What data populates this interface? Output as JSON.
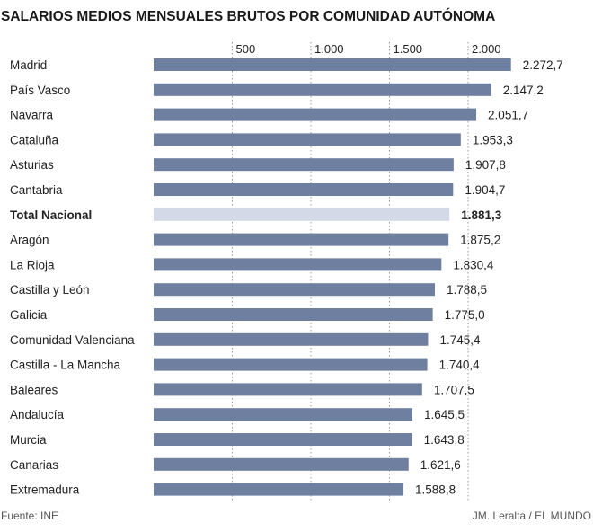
{
  "chart_data": {
    "type": "bar",
    "orientation": "horizontal",
    "title": "SALARIOS MEDIOS MENSUALES BRUTOS POR COMUNIDAD AUTÓNOMA",
    "xlim": [
      0,
      2300
    ],
    "x_ticks": [
      {
        "value": 500,
        "label": "500"
      },
      {
        "value": 1000,
        "label": "1.000"
      },
      {
        "value": 1500,
        "label": "1.500"
      },
      {
        "value": 2000,
        "label": "2.000"
      }
    ],
    "grid": "vertical dotted lines",
    "categories": [
      "Madrid",
      "País Vasco",
      "Navarra",
      "Cataluña",
      "Asturias",
      "Cantabria",
      "Total Nacional",
      "Aragón",
      "La Rioja",
      "Castilla y León",
      "Galicia",
      "Comunidad Valenciana",
      "Castilla - La Mancha",
      "Baleares",
      "Andalucía",
      "Murcia",
      "Canarias",
      "Extremadura"
    ],
    "values": [
      2272.7,
      2147.2,
      2051.7,
      1953.3,
      1907.8,
      1904.7,
      1881.3,
      1875.2,
      1830.4,
      1788.5,
      1775.0,
      1745.4,
      1740.4,
      1707.5,
      1645.5,
      1643.8,
      1621.6,
      1588.8
    ],
    "value_labels": [
      "2.272,7",
      "2.147,2",
      "2.051,7",
      "1.953,3",
      "1.907,8",
      "1.904,7",
      "1.881,3",
      "1.875,2",
      "1.830,4",
      "1.788,5",
      "1.775,0",
      "1.745,4",
      "1.740,4",
      "1.707,5",
      "1.645,5",
      "1.643,8",
      "1.621,6",
      "1.588,8"
    ],
    "highlight_category": "Total Nacional",
    "colors": {
      "bar": "#6f7f9f",
      "highlight_bar": "#d3d9e6",
      "grid": "#999999",
      "text": "#222222"
    }
  },
  "footer": {
    "source": "Fuente: INE",
    "credit": "JM. Leralta / EL MUNDO"
  }
}
